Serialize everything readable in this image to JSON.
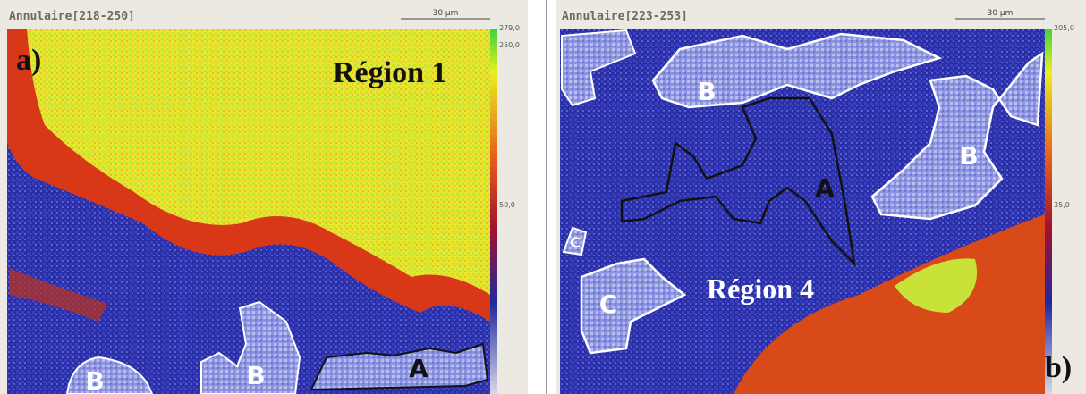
{
  "panels": [
    {
      "header": "Annulaire[218-250]",
      "scale_label": "30 µm",
      "colorbar_labels": [
        "279,0",
        "250,0",
        "50,0"
      ],
      "panel_label": "a)",
      "region_label": "Région 1",
      "zone_labels": [
        "B",
        "B",
        "A"
      ]
    },
    {
      "header": "Annulaire[223-253]",
      "scale_label": "30 µm",
      "colorbar_labels": [
        "205,0",
        "35,0"
      ],
      "panel_label": "b)",
      "region_label": "Région 4",
      "zone_labels": [
        "B",
        "A",
        "B",
        "C",
        "C"
      ]
    }
  ]
}
